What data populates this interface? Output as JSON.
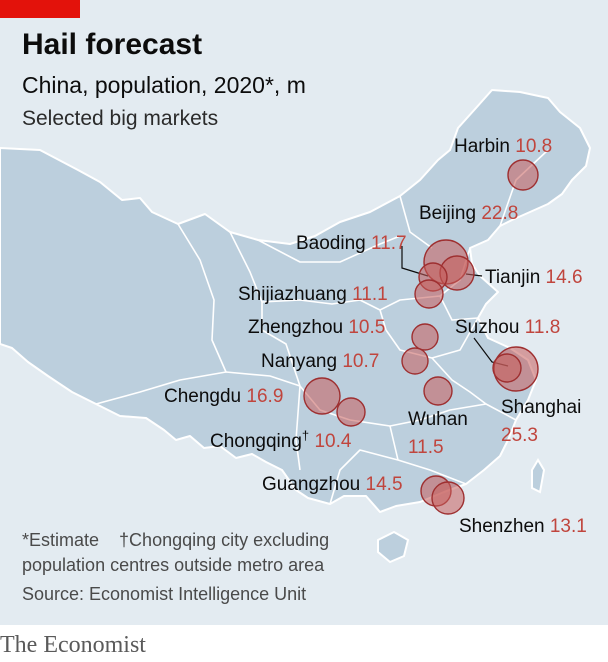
{
  "header": {
    "title": "Hail forecast",
    "subtitle": "China, population, 2020*, m",
    "subtitle2": "Selected big markets"
  },
  "colors": {
    "accent_red": "#e3120b",
    "bubble_fill": "#c75d5b",
    "bubble_stroke": "#9e2f30",
    "map_fill": "#bccfdd",
    "value_text": "#c0453d"
  },
  "cities": [
    {
      "name": "Harbin",
      "value": "10.8",
      "population_m": 10.8
    },
    {
      "name": "Beijing",
      "value": "22.8",
      "population_m": 22.8
    },
    {
      "name": "Baoding",
      "value": "11.7",
      "population_m": 11.7
    },
    {
      "name": "Tianjin",
      "value": "14.6",
      "population_m": 14.6
    },
    {
      "name": "Shijiazhuang",
      "value": "11.1",
      "population_m": 11.1
    },
    {
      "name": "Zhengzhou",
      "value": "10.5",
      "population_m": 10.5
    },
    {
      "name": "Suzhou",
      "value": "11.8",
      "population_m": 11.8
    },
    {
      "name": "Nanyang",
      "value": "10.7",
      "population_m": 10.7
    },
    {
      "name": "Chengdu",
      "value": "16.9",
      "population_m": 16.9
    },
    {
      "name": "Shanghai",
      "value": "25.3",
      "population_m": 25.3
    },
    {
      "name": "Chongqing",
      "marker": "†",
      "value": "10.4",
      "population_m": 10.4
    },
    {
      "name": "Wuhan",
      "value": "11.5",
      "population_m": 11.5
    },
    {
      "name": "Guangzhou",
      "value": "14.5",
      "population_m": 14.5
    },
    {
      "name": "Shenzhen",
      "value": "13.1",
      "population_m": 13.1
    }
  ],
  "footnotes": {
    "estimate": "*Estimate",
    "chongqing": "†Chongqing city excluding",
    "chongqing2": "population centres outside metro area"
  },
  "source": "Source: Economist Intelligence Unit",
  "brand": "The Economist"
}
